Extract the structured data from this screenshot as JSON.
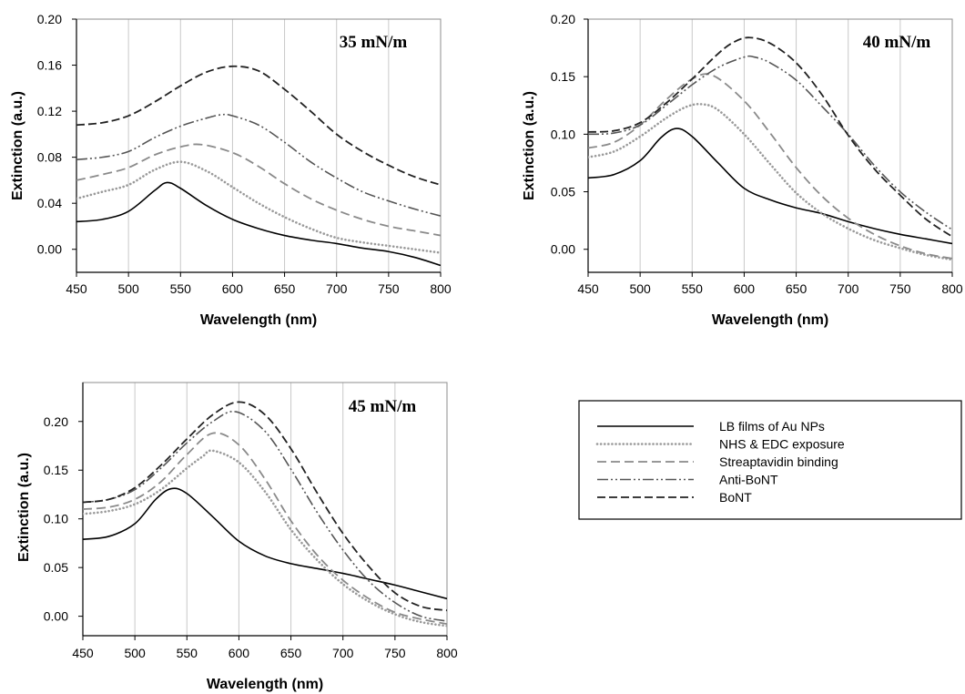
{
  "chart_data": [
    {
      "type": "line",
      "title": "35 mN/m",
      "xlabel": "Wavelength (nm)",
      "ylabel": "Extinction (a.u.)",
      "xlim": [
        450,
        800
      ],
      "ylim": [
        -0.02,
        0.2
      ],
      "xticks": [
        450,
        500,
        550,
        600,
        650,
        700,
        750,
        800
      ],
      "yticks": [
        "0.00",
        "0.04",
        "0.08",
        "0.12",
        "0.16",
        "0.20"
      ],
      "grid": "vertical",
      "series": [
        {
          "name": "LB films of Au NPs",
          "x": [
            450,
            475,
            500,
            525,
            537,
            550,
            575,
            600,
            625,
            650,
            675,
            700,
            725,
            750,
            775,
            800
          ],
          "y": [
            0.024,
            0.026,
            0.033,
            0.051,
            0.058,
            0.053,
            0.038,
            0.026,
            0.018,
            0.012,
            0.008,
            0.005,
            0.001,
            -0.002,
            -0.007,
            -0.014
          ]
        },
        {
          "name": "NHS & EDC exposure",
          "x": [
            450,
            475,
            500,
            525,
            550,
            575,
            600,
            625,
            650,
            675,
            700,
            725,
            750,
            775,
            800
          ],
          "y": [
            0.044,
            0.05,
            0.056,
            0.069,
            0.076,
            0.068,
            0.054,
            0.04,
            0.028,
            0.018,
            0.01,
            0.006,
            0.003,
            0.0,
            -0.003
          ]
        },
        {
          "name": "Streaptavidin binding",
          "x": [
            450,
            475,
            500,
            525,
            550,
            570,
            600,
            625,
            650,
            675,
            700,
            725,
            750,
            775,
            800
          ],
          "y": [
            0.06,
            0.065,
            0.071,
            0.082,
            0.089,
            0.091,
            0.084,
            0.072,
            0.057,
            0.044,
            0.034,
            0.026,
            0.02,
            0.016,
            0.012
          ]
        },
        {
          "name": "Anti-BoNT",
          "x": [
            450,
            475,
            500,
            525,
            550,
            575,
            590,
            600,
            625,
            650,
            675,
            700,
            725,
            750,
            775,
            800
          ],
          "y": [
            0.078,
            0.08,
            0.085,
            0.097,
            0.107,
            0.114,
            0.117,
            0.116,
            0.108,
            0.093,
            0.076,
            0.062,
            0.05,
            0.042,
            0.035,
            0.029
          ]
        },
        {
          "name": "BoNT",
          "x": [
            450,
            475,
            500,
            525,
            550,
            575,
            600,
            625,
            650,
            675,
            700,
            725,
            750,
            775,
            800
          ],
          "y": [
            0.108,
            0.11,
            0.116,
            0.128,
            0.142,
            0.154,
            0.159,
            0.155,
            0.139,
            0.12,
            0.1,
            0.085,
            0.073,
            0.063,
            0.056
          ]
        }
      ]
    },
    {
      "type": "line",
      "title": "40 mN/m",
      "xlabel": "Wavelength (nm)",
      "ylabel": "Extinction (a.u.)",
      "xlim": [
        450,
        800
      ],
      "ylim": [
        -0.02,
        0.2
      ],
      "xticks": [
        450,
        500,
        550,
        600,
        650,
        700,
        750,
        800
      ],
      "yticks": [
        "0.00",
        "0.05",
        "0.10",
        "0.15",
        "0.20"
      ],
      "grid": "vertical",
      "series": [
        {
          "name": "LB films of Au NPs",
          "x": [
            450,
            475,
            500,
            520,
            535,
            550,
            575,
            600,
            625,
            650,
            675,
            700,
            725,
            750,
            775,
            800
          ],
          "y": [
            0.062,
            0.065,
            0.077,
            0.097,
            0.105,
            0.098,
            0.075,
            0.053,
            0.043,
            0.036,
            0.031,
            0.024,
            0.018,
            0.013,
            0.009,
            0.005
          ]
        },
        {
          "name": "NHS & EDC exposure",
          "x": [
            450,
            475,
            500,
            525,
            545,
            560,
            575,
            600,
            625,
            650,
            675,
            700,
            725,
            750,
            775,
            800
          ],
          "y": [
            0.08,
            0.085,
            0.098,
            0.114,
            0.124,
            0.126,
            0.121,
            0.1,
            0.074,
            0.049,
            0.031,
            0.018,
            0.008,
            0.001,
            -0.005,
            -0.009
          ]
        },
        {
          "name": "Streaptavidin binding",
          "x": [
            450,
            475,
            500,
            525,
            550,
            570,
            600,
            625,
            650,
            675,
            700,
            725,
            750,
            775,
            800
          ],
          "y": [
            0.088,
            0.093,
            0.108,
            0.13,
            0.148,
            0.151,
            0.129,
            0.101,
            0.071,
            0.046,
            0.027,
            0.013,
            0.003,
            -0.004,
            -0.008
          ]
        },
        {
          "name": "Anti-BoNT",
          "x": [
            450,
            475,
            500,
            525,
            550,
            575,
            600,
            610,
            625,
            650,
            675,
            700,
            725,
            750,
            775,
            800
          ],
          "y": [
            0.1,
            0.101,
            0.108,
            0.125,
            0.143,
            0.158,
            0.167,
            0.167,
            0.162,
            0.147,
            0.124,
            0.1,
            0.073,
            0.05,
            0.032,
            0.017
          ]
        },
        {
          "name": "BoNT",
          "x": [
            450,
            475,
            500,
            525,
            550,
            575,
            590,
            605,
            625,
            650,
            675,
            700,
            725,
            750,
            775,
            800
          ],
          "y": [
            0.102,
            0.103,
            0.11,
            0.127,
            0.148,
            0.17,
            0.18,
            0.184,
            0.179,
            0.162,
            0.134,
            0.099,
            0.07,
            0.047,
            0.026,
            0.011
          ]
        }
      ]
    },
    {
      "type": "line",
      "title": "45 mN/m",
      "xlabel": "Wavelength (nm)",
      "ylabel": "Extinction (a.u.)",
      "xlim": [
        450,
        800
      ],
      "ylim": [
        -0.02,
        0.24
      ],
      "xticks": [
        450,
        500,
        550,
        600,
        650,
        700,
        750,
        800
      ],
      "yticks": [
        "0.00",
        "0.05",
        "0.10",
        "0.15",
        "0.20"
      ],
      "grid": "vertical",
      "series": [
        {
          "name": "LB films of Au NPs",
          "x": [
            450,
            475,
            500,
            520,
            535,
            550,
            575,
            600,
            625,
            650,
            675,
            700,
            725,
            750,
            775,
            800
          ],
          "y": [
            0.079,
            0.082,
            0.095,
            0.12,
            0.131,
            0.126,
            0.102,
            0.077,
            0.062,
            0.054,
            0.049,
            0.044,
            0.038,
            0.032,
            0.025,
            0.018
          ]
        },
        {
          "name": "NHS & EDC exposure",
          "x": [
            450,
            475,
            500,
            525,
            550,
            565,
            575,
            600,
            625,
            650,
            675,
            700,
            725,
            750,
            775,
            800
          ],
          "y": [
            0.105,
            0.108,
            0.115,
            0.13,
            0.152,
            0.164,
            0.17,
            0.158,
            0.128,
            0.089,
            0.058,
            0.033,
            0.015,
            0.002,
            -0.006,
            -0.01
          ]
        },
        {
          "name": "Streaptavidin binding",
          "x": [
            450,
            475,
            500,
            525,
            550,
            575,
            600,
            625,
            650,
            675,
            700,
            725,
            750,
            775,
            800
          ],
          "y": [
            0.11,
            0.112,
            0.12,
            0.138,
            0.166,
            0.188,
            0.176,
            0.141,
            0.098,
            0.063,
            0.037,
            0.018,
            0.004,
            -0.003,
            -0.008
          ]
        },
        {
          "name": "Anti-BoNT",
          "x": [
            450,
            475,
            500,
            525,
            550,
            575,
            597,
            625,
            650,
            675,
            700,
            725,
            750,
            775,
            800
          ],
          "y": [
            0.117,
            0.12,
            0.13,
            0.152,
            0.178,
            0.2,
            0.21,
            0.19,
            0.151,
            0.107,
            0.068,
            0.036,
            0.014,
            0.0,
            -0.005
          ]
        },
        {
          "name": "BoNT",
          "x": [
            450,
            475,
            500,
            525,
            550,
            575,
            600,
            625,
            650,
            675,
            700,
            725,
            750,
            775,
            800
          ],
          "y": [
            0.117,
            0.12,
            0.132,
            0.155,
            0.182,
            0.207,
            0.22,
            0.207,
            0.172,
            0.127,
            0.085,
            0.051,
            0.024,
            0.01,
            0.006
          ]
        }
      ]
    }
  ],
  "legend": {
    "items": [
      {
        "label": "LB films of Au NPs",
        "dash": "solid",
        "color": "#000000"
      },
      {
        "label": "NHS & EDC exposure",
        "dash": "dotted",
        "color": "#999999"
      },
      {
        "label": "Streaptavidin binding",
        "dash": "dashed",
        "color": "#888888"
      },
      {
        "label": "Anti-BoNT",
        "dash": "dashdotdot",
        "color": "#555555"
      },
      {
        "label": "BoNT",
        "dash": "longdash",
        "color": "#222222"
      }
    ]
  }
}
